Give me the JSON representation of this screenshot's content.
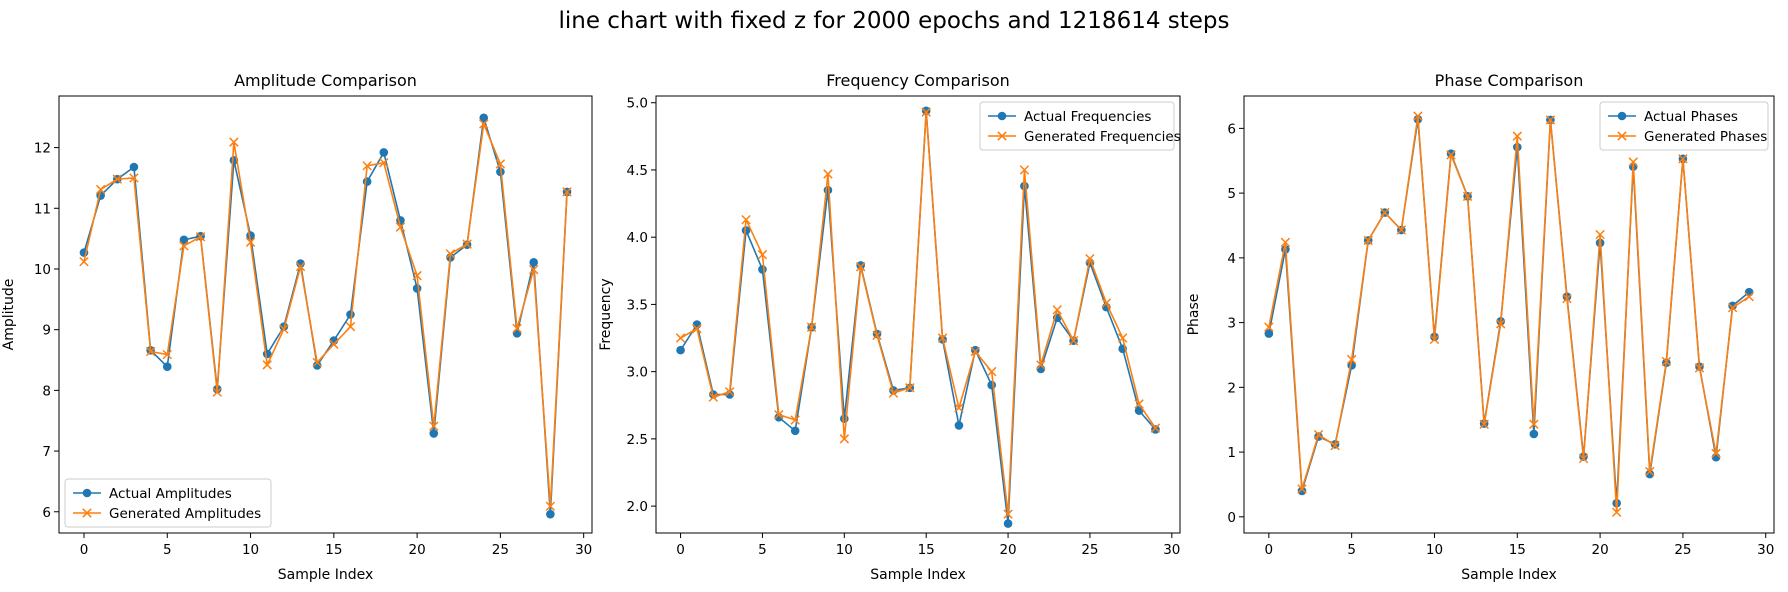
{
  "figure": {
    "suptitle": "line chart with fixed z for 2000 epochs and 1218614 steps"
  },
  "colors": {
    "actual": "#1f77b4",
    "generated": "#ff7f0e"
  },
  "chart_data": [
    {
      "type": "line",
      "title": "Amplitude Comparison",
      "xlabel": "Sample Index",
      "ylabel": "Amplitude",
      "xlim": [
        -1.5,
        30.5
      ],
      "ylim": [
        5.65,
        12.85
      ],
      "xticks": [
        0,
        5,
        10,
        15,
        20,
        25,
        30
      ],
      "yticks": [
        6,
        7,
        8,
        9,
        10,
        11,
        12
      ],
      "legend_position": "lower-left",
      "grid": false,
      "x": [
        0,
        1,
        2,
        3,
        4,
        5,
        6,
        7,
        8,
        9,
        10,
        11,
        12,
        13,
        14,
        15,
        16,
        17,
        18,
        19,
        20,
        21,
        22,
        23,
        24,
        25,
        26,
        27,
        28,
        29
      ],
      "series": [
        {
          "name": "Actual Amplitudes",
          "marker": "o",
          "color": "#1f77b4",
          "values": [
            10.27,
            11.21,
            11.48,
            11.68,
            8.66,
            8.39,
            10.48,
            10.54,
            8.02,
            11.79,
            10.55,
            8.6,
            9.05,
            10.09,
            8.41,
            8.82,
            9.25,
            11.44,
            11.92,
            10.8,
            9.68,
            7.29,
            10.19,
            10.4,
            12.49,
            11.6,
            8.94,
            10.11,
            5.96,
            11.27
          ]
        },
        {
          "name": "Generated Amplitudes",
          "marker": "x",
          "color": "#ff7f0e",
          "values": [
            10.12,
            11.31,
            11.48,
            11.5,
            8.64,
            8.59,
            10.38,
            10.53,
            7.97,
            12.09,
            10.44,
            8.42,
            9.01,
            10.04,
            8.46,
            8.76,
            9.05,
            11.7,
            11.75,
            10.69,
            9.89,
            7.41,
            10.25,
            10.41,
            12.39,
            11.73,
            9.02,
            9.99,
            6.09,
            11.27
          ]
        }
      ]
    },
    {
      "type": "line",
      "title": "Frequency Comparison",
      "xlabel": "Sample Index",
      "ylabel": "Frequency",
      "xlim": [
        -1.5,
        30.5
      ],
      "ylim": [
        1.8,
        5.05
      ],
      "xticks": [
        0,
        5,
        10,
        15,
        20,
        25,
        30
      ],
      "yticks": [
        2.0,
        2.5,
        3.0,
        3.5,
        4.0,
        4.5,
        5.0
      ],
      "ytick_labels": [
        "2.0",
        "2.5",
        "3.0",
        "3.5",
        "4.0",
        "4.5",
        "5.0"
      ],
      "legend_position": "upper-right",
      "grid": false,
      "x": [
        0,
        1,
        2,
        3,
        4,
        5,
        6,
        7,
        8,
        9,
        10,
        11,
        12,
        13,
        14,
        15,
        16,
        17,
        18,
        19,
        20,
        21,
        22,
        23,
        24,
        25,
        26,
        27,
        28,
        29
      ],
      "series": [
        {
          "name": "Actual Frequencies",
          "marker": "o",
          "color": "#1f77b4",
          "values": [
            3.16,
            3.35,
            2.83,
            2.83,
            4.05,
            3.76,
            2.66,
            2.56,
            3.33,
            4.35,
            2.65,
            3.79,
            3.28,
            2.86,
            2.88,
            4.94,
            3.24,
            2.6,
            3.16,
            2.9,
            1.87,
            4.38,
            3.02,
            3.4,
            3.23,
            3.81,
            3.48,
            3.17,
            2.71,
            2.57
          ]
        },
        {
          "name": "Generated Frequencies",
          "marker": "x",
          "color": "#ff7f0e",
          "values": [
            3.25,
            3.32,
            2.81,
            2.85,
            4.13,
            3.87,
            2.68,
            2.64,
            3.33,
            4.47,
            2.5,
            3.78,
            3.27,
            2.84,
            2.88,
            4.93,
            3.25,
            2.73,
            3.15,
            3.0,
            1.94,
            4.5,
            3.05,
            3.46,
            3.23,
            3.84,
            3.51,
            3.25,
            2.76,
            2.58
          ]
        }
      ]
    },
    {
      "type": "line",
      "title": "Phase Comparison",
      "xlabel": "Sample Index",
      "ylabel": "Phase",
      "xlim": [
        -1.5,
        30.5
      ],
      "ylim": [
        -0.25,
        6.5
      ],
      "xticks": [
        0,
        5,
        10,
        15,
        20,
        25,
        30
      ],
      "yticks": [
        0,
        1,
        2,
        3,
        4,
        5,
        6
      ],
      "legend_position": "upper-right",
      "grid": false,
      "x": [
        0,
        1,
        2,
        3,
        4,
        5,
        6,
        7,
        8,
        9,
        10,
        11,
        12,
        13,
        14,
        15,
        16,
        17,
        18,
        19,
        20,
        21,
        22,
        23,
        24,
        25,
        26,
        27,
        28,
        29
      ],
      "series": [
        {
          "name": "Actual Phases",
          "marker": "o",
          "color": "#1f77b4",
          "values": [
            2.83,
            4.13,
            0.4,
            1.24,
            1.12,
            2.34,
            4.27,
            4.7,
            4.43,
            6.14,
            2.78,
            5.61,
            4.95,
            1.44,
            3.02,
            5.71,
            1.28,
            6.13,
            3.4,
            0.93,
            4.23,
            0.21,
            5.41,
            0.66,
            2.38,
            5.53,
            2.32,
            0.92,
            3.26,
            3.47
          ]
        },
        {
          "name": "Generated Phases",
          "marker": "x",
          "color": "#ff7f0e",
          "values": [
            2.93,
            4.24,
            0.43,
            1.27,
            1.1,
            2.43,
            4.27,
            4.7,
            4.43,
            6.19,
            2.74,
            5.59,
            4.95,
            1.43,
            2.98,
            5.88,
            1.43,
            6.13,
            3.37,
            0.9,
            4.36,
            0.07,
            5.48,
            0.7,
            2.4,
            5.53,
            2.3,
            0.98,
            3.23,
            3.4
          ]
        }
      ]
    }
  ]
}
